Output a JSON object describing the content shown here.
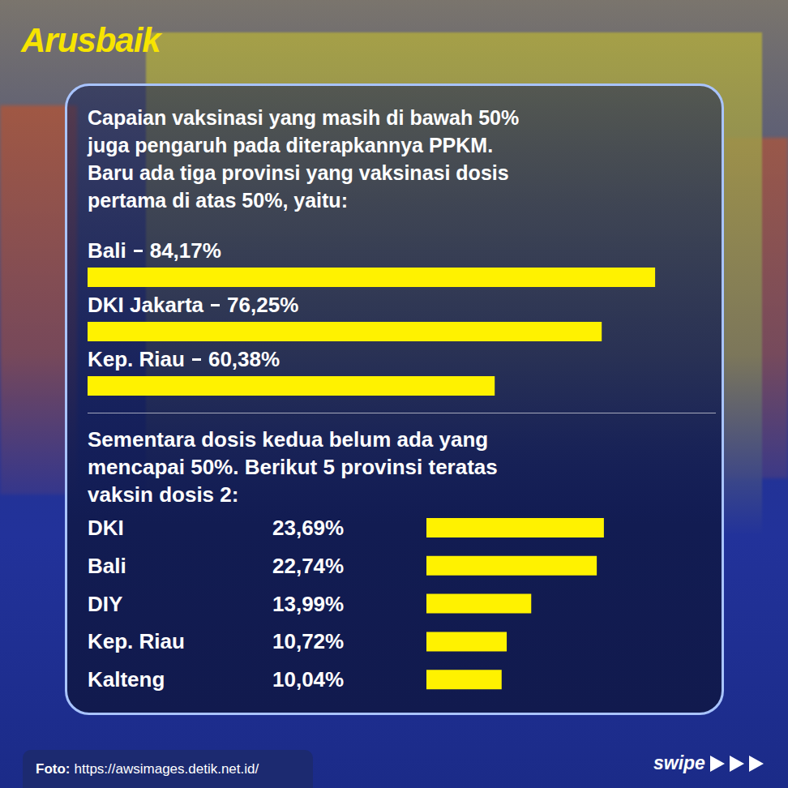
{
  "brand": "Arusbaik",
  "chart_data": [
    {
      "type": "bar",
      "orientation": "horizontal",
      "title": "Capaian vaksinasi yang masih di bawah 50%\njuga pengaruh pada diterapkannya PPKM.\nBaru ada tiga provinsi yang vaksinasi dosis\npertama di atas 50%, yaitu:",
      "categories": [
        "Bali",
        "DKI Jakarta",
        "Kep. Riau"
      ],
      "values": [
        84.17,
        76.25,
        60.38
      ],
      "value_labels": [
        "84,17%",
        "76,25%",
        "60,38%"
      ],
      "color": "#fff200",
      "xlim": [
        0,
        85
      ],
      "tick_labels": false,
      "data_labels": true
    },
    {
      "type": "bar",
      "orientation": "horizontal",
      "title": "Sementara dosis kedua belum ada yang\nmencapai 50%. Berikut 5 provinsi teratas\nvaksin dosis 2:",
      "categories": [
        "DKI",
        "Bali",
        "DIY",
        "Kep. Riau",
        "Kalteng"
      ],
      "values": [
        23.69,
        22.74,
        13.99,
        10.72,
        10.04
      ],
      "value_labels": [
        "23,69%",
        "22,74%",
        "13,99%",
        "10,72%",
        "10,04%"
      ],
      "color": "#fff200",
      "xlim": [
        0,
        25
      ],
      "tick_labels": false,
      "data_labels": true
    }
  ],
  "footer": {
    "label": "Foto:",
    "source": "https://awsimages.detik.net.id/",
    "swipe": "swipe"
  }
}
